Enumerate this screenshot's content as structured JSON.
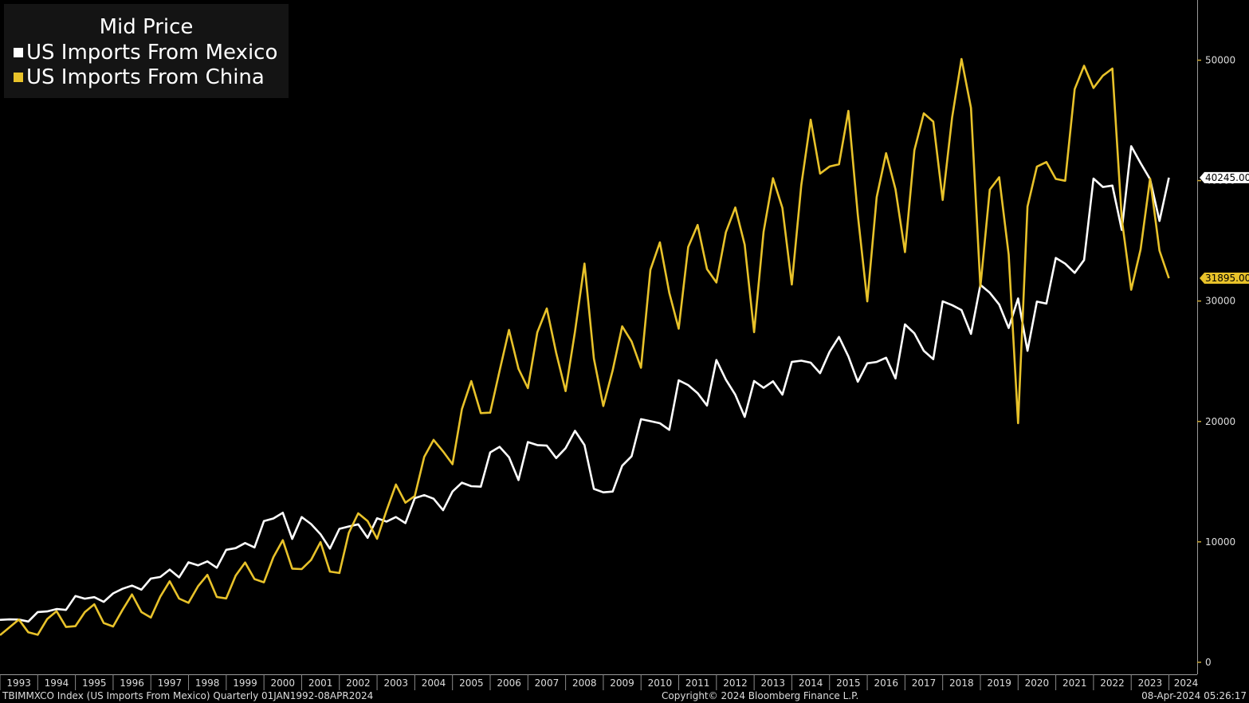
{
  "chart_data": {
    "type": "line",
    "title": "",
    "legend": {
      "title": "Mid Price",
      "placement": "top-left"
    },
    "xlabel": "",
    "ylabel": "",
    "x_ticks": [
      "1993",
      "1994",
      "1995",
      "1996",
      "1997",
      "1998",
      "1999",
      "2000",
      "2001",
      "2002",
      "2003",
      "2004",
      "2005",
      "2006",
      "2007",
      "2008",
      "2009",
      "2010",
      "2011",
      "2012",
      "2013",
      "2014",
      "2015",
      "2016",
      "2017",
      "2018",
      "2019",
      "2020",
      "2021",
      "2022",
      "2023",
      "2024"
    ],
    "y_ticks": [
      0,
      10000,
      20000,
      30000,
      40000,
      50000
    ],
    "ylim": [
      -1000,
      55000
    ],
    "xlim": [
      1993.0,
      2024.75
    ],
    "grid": false,
    "y_axis_side": "right",
    "x_start_year": 1993,
    "x_step": 0.25,
    "series": [
      {
        "name": "US Imports From Mexico",
        "color": "#ffffff",
        "last_value_label": "40245.00",
        "values": [
          3520,
          3560,
          3550,
          3380,
          4170,
          4220,
          4420,
          4350,
          5500,
          5280,
          5410,
          5020,
          5720,
          6100,
          6370,
          6030,
          6950,
          7080,
          7700,
          7050,
          8300,
          8050,
          8380,
          7850,
          9340,
          9480,
          9900,
          9540,
          11720,
          11940,
          12420,
          10240,
          12060,
          11480,
          10640,
          9440,
          11080,
          11280,
          11460,
          10330,
          11960,
          11680,
          12060,
          11560,
          13630,
          13880,
          13580,
          12630,
          14180,
          14910,
          14620,
          14580,
          17430,
          17890,
          17030,
          15130,
          18290,
          18040,
          17990,
          16960,
          17780,
          19220,
          18040,
          14400,
          14110,
          14180,
          16320,
          17110,
          20190,
          20020,
          19850,
          19300,
          23420,
          23020,
          22350,
          21320,
          25100,
          23470,
          22220,
          20380,
          23360,
          22790,
          23330,
          22230,
          24940,
          25050,
          24880,
          24010,
          25790,
          27020,
          25400,
          23300,
          24830,
          24940,
          25290,
          23570,
          28060,
          27320,
          25870,
          25170,
          29970,
          29660,
          29250,
          27270,
          31340,
          30690,
          29710,
          27760,
          30220,
          25870,
          29950,
          29790,
          33580,
          33100,
          32340,
          33410,
          40170,
          39470,
          39590,
          35900,
          42860,
          41460,
          40120,
          36650,
          40245
        ]
      },
      {
        "name": "US Imports From China",
        "color": "#e8c22a",
        "last_value_label": "31895.00",
        "values": [
          2250,
          2900,
          3550,
          2490,
          2280,
          3580,
          4240,
          2930,
          3000,
          4160,
          4820,
          3260,
          2970,
          4350,
          5630,
          4170,
          3710,
          5450,
          6730,
          5290,
          4940,
          6310,
          7260,
          5420,
          5300,
          7200,
          8290,
          6910,
          6640,
          8730,
          10140,
          7780,
          7740,
          8500,
          9980,
          7530,
          7410,
          10740,
          12370,
          11730,
          10250,
          12590,
          14760,
          13250,
          13810,
          17050,
          18470,
          17510,
          16450,
          21020,
          23350,
          20690,
          20730,
          24210,
          27600,
          24370,
          22770,
          27400,
          29380,
          25690,
          22520,
          27470,
          33110,
          25220,
          21280,
          24250,
          27900,
          26640,
          24460,
          32590,
          34870,
          30680,
          27700,
          34480,
          36320,
          32650,
          31540,
          35720,
          37770,
          34670,
          27420,
          35750,
          40200,
          37730,
          31370,
          39620,
          45060,
          40580,
          41170,
          41360,
          45790,
          37160,
          29970,
          38630,
          42280,
          39280,
          34060,
          42530,
          45590,
          44900,
          38390,
          45230,
          50100,
          46040,
          31180,
          39250,
          40280,
          33850,
          19860,
          37840,
          41160,
          41540,
          40140,
          39990,
          47600,
          49540,
          47690,
          48720,
          49310,
          36810,
          30930,
          34290,
          40160,
          34180,
          31895
        ]
      }
    ]
  },
  "footer": {
    "left": "TBIMMXCO Index (US Imports From Mexico)  Quarterly 01JAN1992-08APR2024",
    "center": "Copyright© 2024 Bloomberg Finance L.P.",
    "right": "08-Apr-2024 05:26:17"
  }
}
